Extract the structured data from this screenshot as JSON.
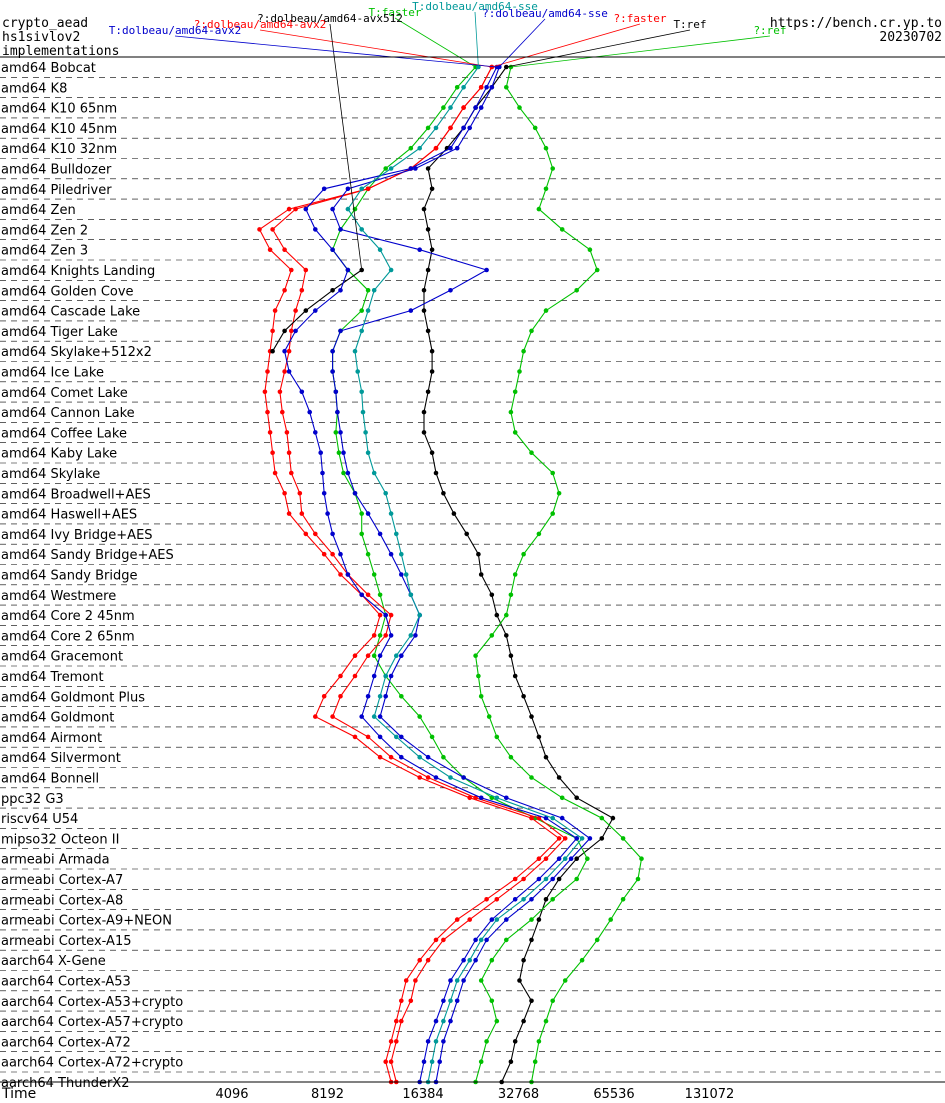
{
  "chart_data": {
    "type": "line",
    "title_left": [
      "crypto_aead",
      "hs1sivlov2",
      "implementations"
    ],
    "title_right": [
      "https://bench.cr.yp.to",
      "20230702"
    ],
    "xlabel": "Time",
    "x_scale": "log2",
    "x_ticks": [
      "4096",
      "8192",
      "16384",
      "32768",
      "65536",
      "131072"
    ],
    "categories": [
      "amd64 Bobcat",
      "amd64 K8",
      "amd64 K10 65nm",
      "amd64 K10 45nm",
      "amd64 K10 32nm",
      "amd64 Bulldozer",
      "amd64 Piledriver",
      "amd64 Zen",
      "amd64 Zen 2",
      "amd64 Zen 3",
      "amd64 Knights Landing",
      "amd64 Golden Cove",
      "amd64 Cascade Lake",
      "amd64 Tiger Lake",
      "amd64 Skylake+512x2",
      "amd64 Ice Lake",
      "amd64 Comet Lake",
      "amd64 Cannon Lake",
      "amd64 Coffee Lake",
      "amd64 Kaby Lake",
      "amd64 Skylake",
      "amd64 Broadwell+AES",
      "amd64 Haswell+AES",
      "amd64 Ivy Bridge+AES",
      "amd64 Sandy Bridge+AES",
      "amd64 Sandy Bridge",
      "amd64 Westmere",
      "amd64 Core 2 45nm",
      "amd64 Core 2 65nm",
      "amd64 Gracemont",
      "amd64 Tremont",
      "amd64 Goldmont Plus",
      "amd64 Goldmont",
      "amd64 Airmont",
      "amd64 Silvermont",
      "amd64 Bonnell",
      "ppc32 G3",
      "riscv64 U54",
      "mipso32 Octeon II",
      "armeabi Armada",
      "armeabi Cortex-A7",
      "armeabi Cortex-A8",
      "armeabi Cortex-A9+NEON",
      "armeabi Cortex-A15",
      "aarch64 X-Gene",
      "aarch64 Cortex-A53",
      "aarch64 Cortex-A53+crypto",
      "aarch64 Cortex-A57+crypto",
      "aarch64 Cortex-A72",
      "aarch64 Cortex-A72+crypto",
      "aarch64 ThunderX2"
    ],
    "series": [
      {
        "name": "T:ref",
        "color": "#000000",
        "values": [
          30000,
          27000,
          24000,
          22000,
          19500,
          17000,
          17500,
          16500,
          17000,
          17500,
          17000,
          16500,
          16500,
          17000,
          17500,
          17500,
          17000,
          16500,
          16500,
          17500,
          18000,
          19000,
          20500,
          22500,
          24500,
          25000,
          27000,
          28000,
          30000,
          31000,
          32000,
          34000,
          36000,
          38000,
          40000,
          44000,
          50000,
          65000,
          60000,
          50000,
          44000,
          40000,
          38000,
          36000,
          34000,
          33000,
          36000,
          34000,
          32000,
          31000,
          29000
        ]
      },
      {
        "name": "?:ref",
        "color": "#00c000",
        "values": [
          31000,
          30000,
          33000,
          37000,
          40000,
          42000,
          40000,
          38000,
          45000,
          55000,
          58000,
          50000,
          40000,
          36000,
          34000,
          33000,
          32000,
          31000,
          32000,
          36000,
          42000,
          44000,
          42000,
          38000,
          34000,
          32000,
          31000,
          30000,
          27000,
          24000,
          24500,
          25000,
          26500,
          28000,
          31000,
          36000,
          45000,
          60000,
          70000,
          80000,
          78000,
          70000,
          64000,
          58000,
          52000,
          46000,
          42000,
          40000,
          38000,
          37000,
          36000
        ]
      },
      {
        "name": "T:faster",
        "color": "#00c000",
        "values": [
          24000,
          21000,
          19000,
          17000,
          15000,
          12500,
          11000,
          10000,
          9000,
          8500,
          9500,
          11000,
          10500,
          9000,
          8500,
          8500,
          8700,
          8800,
          8700,
          8900,
          9200,
          10000,
          10500,
          10500,
          11000,
          11500,
          12000,
          12500,
          12000,
          11500,
          12500,
          14000,
          16000,
          17500,
          19000,
          22000,
          27000,
          37000,
          50000,
          54000,
          50000,
          42000,
          36000,
          30000,
          27000,
          25000,
          27000,
          28000,
          26000,
          25000,
          24000
        ]
      },
      {
        "name": "?:faster",
        "color": "#ff0000",
        "values": [
          27000,
          25000,
          22000,
          20000,
          18000,
          15000,
          11000,
          6500,
          5500,
          6000,
          7000,
          6800,
          6500,
          6300,
          6200,
          6000,
          5800,
          5900,
          6100,
          6200,
          6300,
          6700,
          6800,
          7500,
          8500,
          9500,
          11000,
          13000,
          12500,
          11000,
          10000,
          9000,
          8500,
          11000,
          13000,
          17000,
          24000,
          38000,
          46000,
          40000,
          34000,
          28000,
          23000,
          19000,
          17000,
          15500,
          15000,
          14000,
          13500,
          13000,
          13500
        ]
      },
      {
        "name": "?:dolbeau/amd64-avx2",
        "color": "#ff0000",
        "values": [
          27000,
          25000,
          22000,
          20000,
          18000,
          15000,
          11000,
          6200,
          5000,
          5400,
          6300,
          6000,
          5600,
          5500,
          5400,
          5300,
          5200,
          5300,
          5400,
          5500,
          5600,
          6000,
          6200,
          7000,
          8000,
          9000,
          10500,
          12000,
          11500,
          10000,
          9000,
          8000,
          7500,
          10000,
          12000,
          16000,
          23000,
          36000,
          44000,
          38000,
          32000,
          26000,
          21000,
          18000,
          16000,
          14500,
          14000,
          13500,
          13000,
          12500,
          13000
        ]
      },
      {
        "name": "?:dolbeau/amd64-avx512",
        "color": "#000000",
        "values": [
          null,
          null,
          null,
          null,
          null,
          null,
          null,
          null,
          null,
          null,
          10500,
          8500,
          7000,
          6000,
          5500,
          null,
          null,
          null,
          null,
          null,
          null,
          null,
          null,
          null,
          null,
          null,
          null,
          null,
          null,
          null,
          null,
          null,
          null,
          null,
          null,
          null,
          null,
          null,
          null,
          null,
          null,
          null,
          null,
          null,
          null,
          null,
          null,
          null,
          null,
          null,
          null
        ]
      },
      {
        "name": "T:dolbeau/amd64-avx2",
        "color": "#0000cc",
        "values": [
          28000,
          26000,
          24000,
          22000,
          20000,
          15000,
          8000,
          7000,
          7500,
          8500,
          9500,
          9000,
          7500,
          6500,
          6000,
          6200,
          6800,
          7200,
          7500,
          7800,
          7900,
          8000,
          8200,
          8500,
          9000,
          9500,
          10500,
          12500,
          13000,
          12000,
          11500,
          11000,
          10500,
          12000,
          14000,
          18000,
          25000,
          40000,
          50000,
          44000,
          38000,
          32000,
          27000,
          24000,
          22000,
          20000,
          19000,
          18000,
          17000,
          16500,
          16000
        ]
      },
      {
        "name": "?:dolbeau/amd64-sse",
        "color": "#0000cc",
        "values": [
          28500,
          27000,
          25000,
          23000,
          21000,
          15500,
          9500,
          8500,
          9000,
          16000,
          26000,
          20000,
          15000,
          9000,
          8500,
          8500,
          8700,
          8800,
          9000,
          9200,
          9500,
          10000,
          11000,
          12000,
          13000,
          14000,
          15000,
          16000,
          15500,
          14000,
          13000,
          12500,
          12000,
          14000,
          17000,
          22000,
          30000,
          45000,
          55000,
          48000,
          42000,
          36000,
          30000,
          26000,
          24000,
          22000,
          21000,
          20000,
          19000,
          18500,
          18000
        ]
      },
      {
        "name": "T:dolbeau/amd64-sse",
        "color": "#009999",
        "values": [
          24500,
          22000,
          20000,
          18000,
          16000,
          13000,
          10500,
          9500,
          10500,
          12000,
          13000,
          11500,
          11000,
          10500,
          10000,
          10200,
          10500,
          10600,
          10800,
          11000,
          11500,
          12500,
          13000,
          13500,
          14000,
          14500,
          15000,
          16000,
          15000,
          13500,
          12500,
          12000,
          11500,
          13500,
          16000,
          20000,
          28000,
          42000,
          52000,
          46000,
          40000,
          34000,
          28000,
          25000,
          23000,
          21000,
          20000,
          19000,
          18000,
          17500,
          17000
        ]
      }
    ]
  }
}
